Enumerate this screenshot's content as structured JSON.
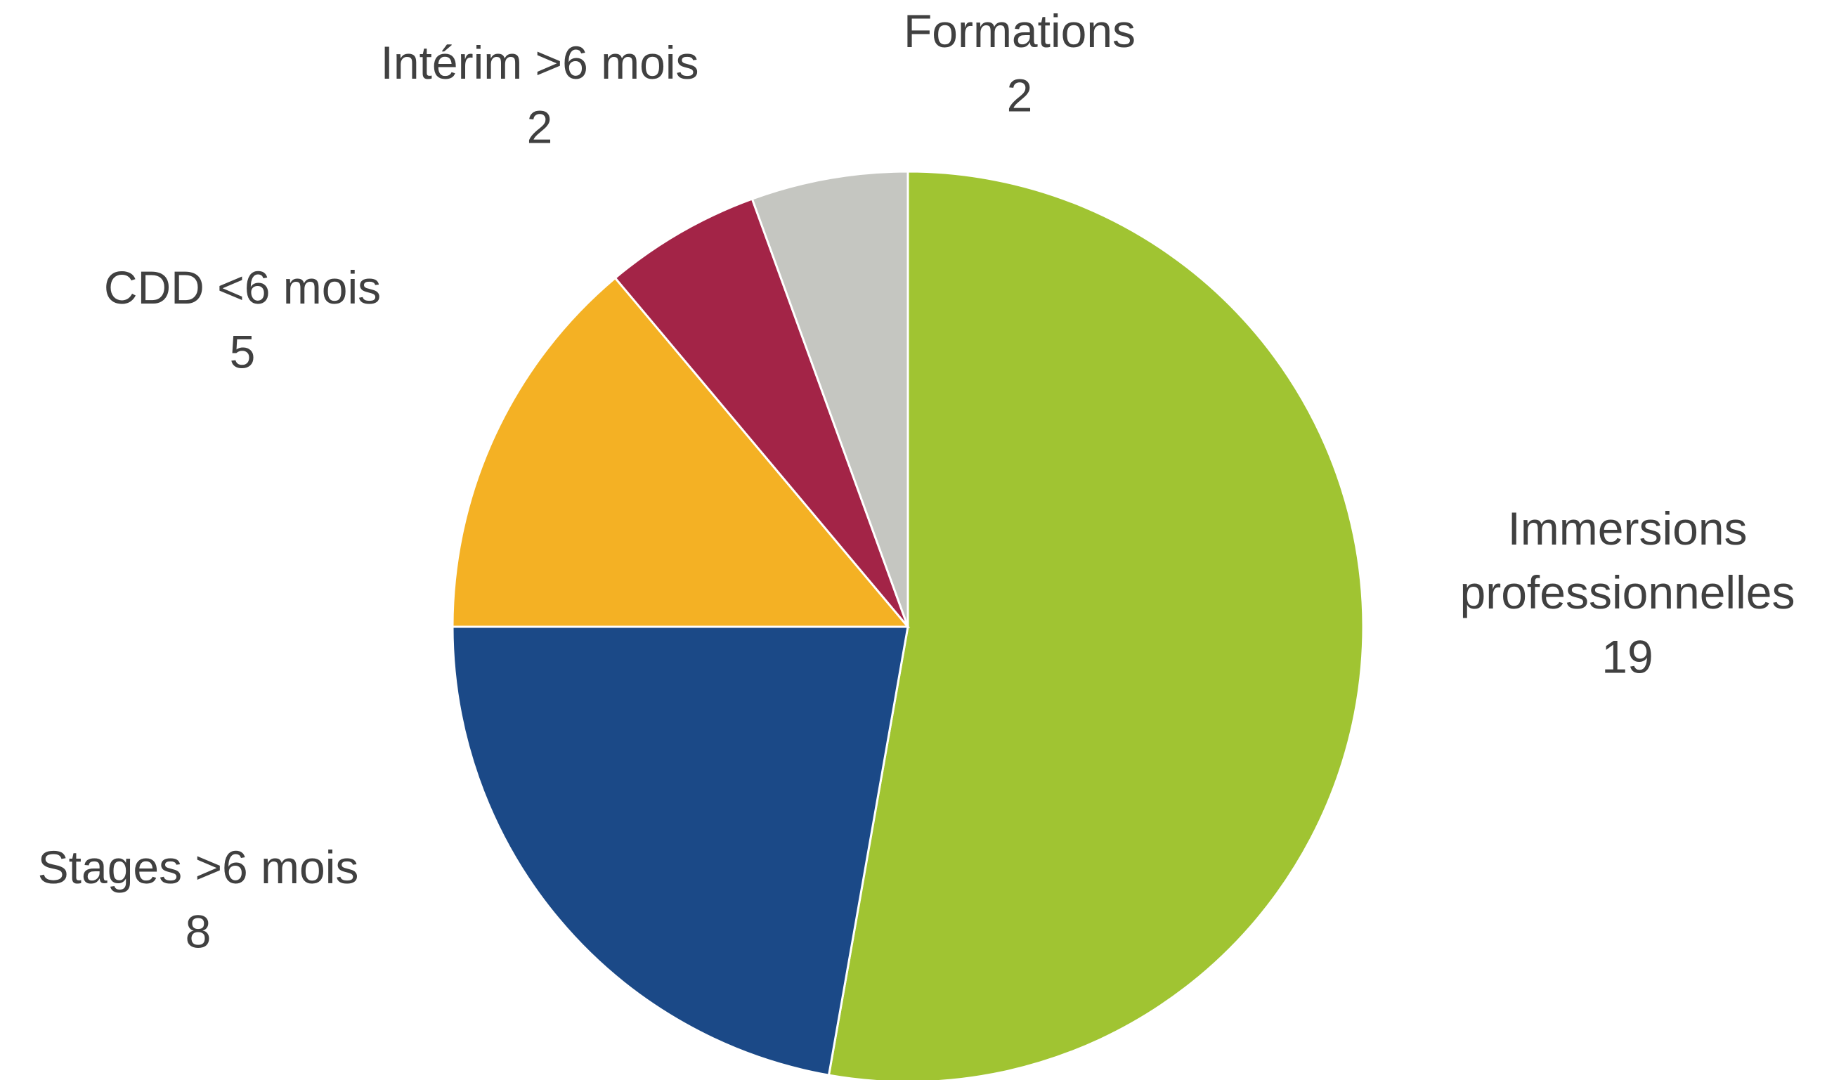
{
  "chart_data": {
    "type": "pie",
    "categories": [
      "Immersions professionnelles",
      "Stages >6 mois",
      "CDD <6 mois",
      "Intérim >6 mois",
      "Formations"
    ],
    "values": [
      19,
      8,
      5,
      2,
      2
    ],
    "colors": [
      "#a0c432",
      "#1b4987",
      "#f4b124",
      "#a32447",
      "#c5c6c1"
    ]
  }
}
